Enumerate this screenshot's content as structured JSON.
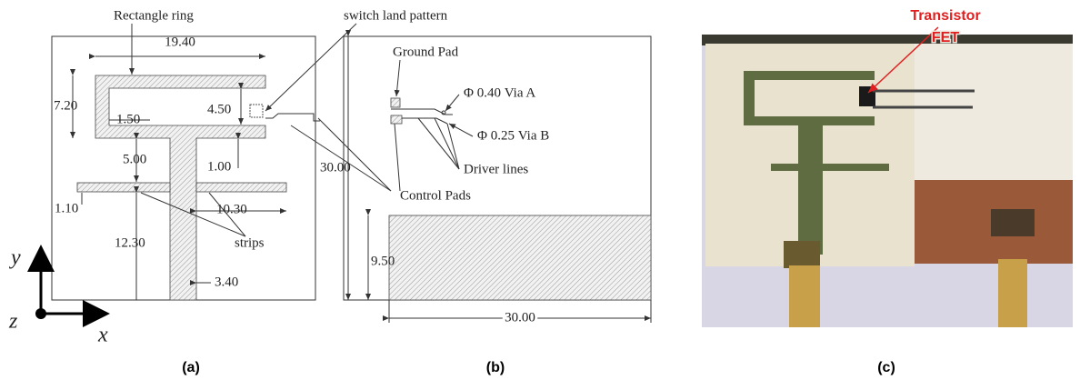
{
  "panel_a": {
    "labels": {
      "rectangle_ring": "Rectangle ring",
      "width_ring": "19.40",
      "height_ring": "7.20",
      "ring_thickness": "1.50",
      "inner_height": "4.50",
      "stem_gap": "5.00",
      "gap_small": "1.00",
      "strip_width": "1.10",
      "strip_length": "10.30",
      "strips": "strips",
      "stem_length": "12.30",
      "stem_width": "3.40"
    },
    "axes": {
      "y": "y",
      "z": "z",
      "x": "x"
    },
    "caption": "(a)"
  },
  "switch_label": "switch land pattern",
  "panel_b": {
    "labels": {
      "ground_pad": "Ground Pad",
      "via_a": "Φ 0.40 Via A",
      "via_b": "Φ 0.25 Via B",
      "driver_lines": "Driver lines",
      "height": "30.00",
      "control_pads": "Control Pads",
      "ground_height": "9.50",
      "width": "30.00"
    },
    "caption": "(b)"
  },
  "panel_c": {
    "annotation": {
      "line1": "Transistor",
      "line2": "FET"
    },
    "caption": "(c)"
  }
}
